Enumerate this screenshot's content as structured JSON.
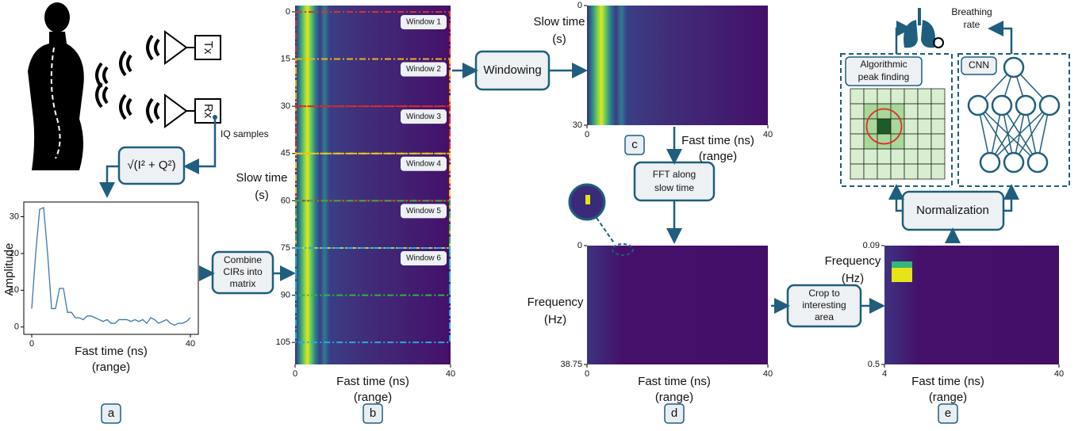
{
  "sensor": {
    "tx": "Tx",
    "rx": "Rx",
    "iq_label": "IQ samples",
    "formula": "√(I² + Q²)"
  },
  "panel_a": {
    "type": "line",
    "tag": "a",
    "y_label": "Amplitude",
    "x_label": "Fast time (ns)",
    "x_label_2": "(range)",
    "color": "#3a78b0",
    "x": [
      0,
      1,
      2,
      3,
      4,
      5,
      6,
      7,
      8,
      9,
      10,
      11,
      12,
      13,
      14,
      15,
      16,
      17,
      18,
      19,
      20,
      21,
      22,
      23,
      24,
      25,
      26,
      27,
      28,
      29,
      30,
      31,
      32,
      33,
      34,
      35,
      36,
      37,
      38,
      39,
      40
    ],
    "values": [
      5,
      20,
      32,
      32.5,
      20,
      5,
      5,
      10.5,
      10.5,
      4,
      4,
      2.5,
      2.5,
      2,
      3,
      3,
      2.5,
      2,
      1.5,
      2,
      1,
      1,
      2,
      2,
      2,
      1.5,
      2,
      1.5,
      2,
      1,
      2.5,
      2,
      1,
      1.5,
      2,
      1,
      0.5,
      1,
      1,
      1.5,
      2.5
    ],
    "xlim": [
      -2,
      42
    ],
    "ylim": [
      -2,
      34
    ],
    "xticks": [
      0,
      40
    ],
    "yticks": [
      0,
      10,
      20,
      30
    ]
  },
  "panel_b": {
    "tag": "b",
    "y_label": "Slow time",
    "y_label_2": "(s)",
    "x_label": "Fast time (ns)",
    "x_label_2": "(range)",
    "xlim": [
      0,
      40
    ],
    "ylim": [
      -2,
      112
    ],
    "xticks": [
      0,
      40
    ],
    "yticks": [
      0,
      15,
      30,
      45,
      60,
      75,
      90,
      105
    ],
    "windows": [
      "Window 1",
      "Window 2",
      "Window 3",
      "Window 4",
      "Window 5",
      "Window 6"
    ]
  },
  "panel_c": {
    "tag": "c",
    "y_label": "Slow time",
    "y_label_2": "(s)",
    "x_label": "Fast time (ns)",
    "x_label_2": "(range)",
    "xlim": [
      0,
      40
    ],
    "ylim": [
      0,
      30
    ],
    "xticks": [
      0,
      40
    ],
    "yticks": [
      0,
      30
    ]
  },
  "panel_d": {
    "tag": "d",
    "y_label": "Frequency",
    "y_label_2": "(Hz)",
    "x_label": "Fast time (ns)",
    "x_label_2": "(range)",
    "xlim": [
      0,
      40
    ],
    "ylim": [
      0,
      38.75
    ],
    "xticks": [
      0,
      40
    ],
    "yticks": [
      0,
      38.75
    ]
  },
  "panel_e": {
    "tag": "e",
    "y_label": "Frequency",
    "y_label_2": "(Hz)",
    "x_label": "Fast time (ns)",
    "x_label_2": "(range)",
    "xlim": [
      4,
      40
    ],
    "ylim": [
      0.09,
      0.5
    ],
    "xticks": [
      4,
      40
    ],
    "yticks": [
      0.09,
      0.5
    ]
  },
  "steps": {
    "combine": [
      "Combine",
      "CIRs into",
      "matrix"
    ],
    "windowing": "Windowing",
    "fft": [
      "FFT along",
      "slow time"
    ],
    "crop": [
      "Crop to",
      "interesting",
      "area"
    ],
    "normalization": "Normalization",
    "peak": [
      "Algorithmic",
      "peak finding"
    ],
    "cnn": "CNN",
    "output": [
      "Breathing",
      "rate"
    ]
  }
}
